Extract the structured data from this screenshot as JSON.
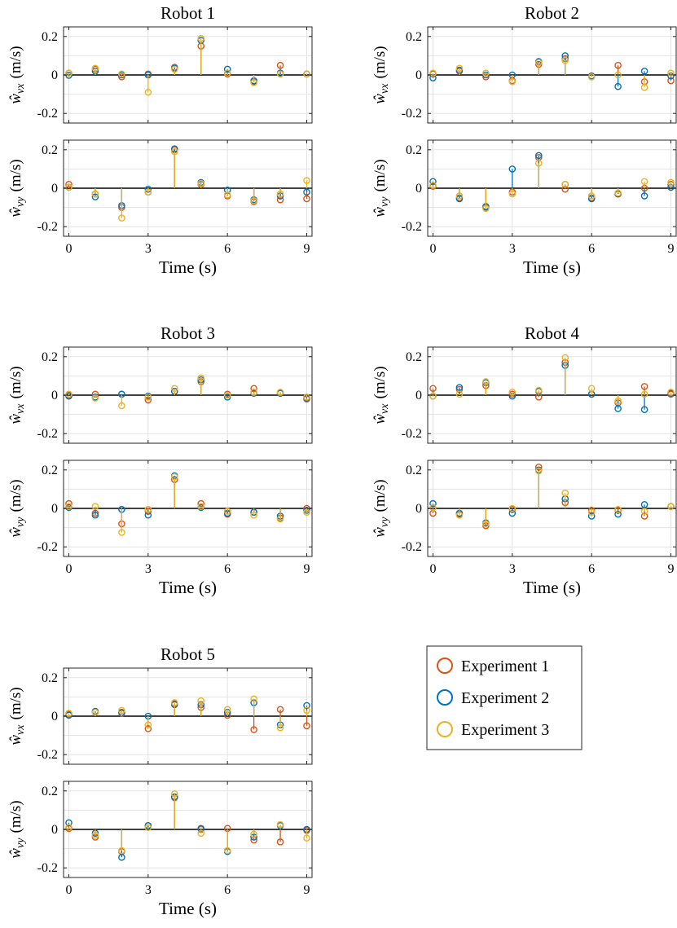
{
  "figure": {
    "legend": {
      "placement": "right-column",
      "entries": [
        "Experiment 1",
        "Experiment 2",
        "Experiment 3"
      ]
    },
    "colors": {
      "Experiment 1": "#d95319",
      "Experiment 2": "#0072bd",
      "Experiment 3": "#edb120"
    }
  },
  "chart_data": [
    {
      "type": "stem",
      "title": "Robot 1",
      "xlabel": "Time (s)",
      "ylabels": {
        "vx": "(m/s)",
        "vy": "(m/s)"
      },
      "ylabel_symbols": {
        "vx": "ŵ_vx",
        "vy": "ŵ_vy"
      },
      "x": [
        0,
        1,
        2,
        3,
        4,
        5,
        6,
        7,
        8,
        9
      ],
      "xticks": [
        "0",
        "3",
        "6",
        "9"
      ],
      "xlim": [
        -0.2,
        9.2
      ],
      "ylim": [
        -0.25,
        0.25
      ],
      "yticks": [
        "0.2",
        "0",
        "-0.2"
      ],
      "grid": true,
      "vx": [
        {
          "name": "Experiment 1",
          "values": [
            0.01,
            0.03,
            -0.01,
            0.005,
            0.04,
            0.15,
            0.005,
            -0.035,
            0.05,
            0.005
          ]
        },
        {
          "name": "Experiment 2",
          "values": [
            -0.002,
            0.02,
            0.0,
            0.0,
            0.035,
            0.18,
            0.03,
            -0.03,
            0.01,
            0.005
          ]
        },
        {
          "name": "Experiment 3",
          "values": [
            0.01,
            0.035,
            0.005,
            -0.09,
            0.03,
            0.19,
            0.01,
            -0.04,
            0.005,
            0.005
          ]
        }
      ],
      "vy": [
        {
          "name": "Experiment 1",
          "values": [
            0.02,
            -0.03,
            -0.1,
            -0.02,
            0.2,
            0.02,
            -0.04,
            -0.07,
            -0.06,
            -0.055
          ]
        },
        {
          "name": "Experiment 2",
          "values": [
            0.005,
            -0.045,
            -0.09,
            -0.005,
            0.205,
            0.03,
            -0.01,
            -0.06,
            -0.04,
            -0.02
          ]
        },
        {
          "name": "Experiment 3",
          "values": [
            0.005,
            -0.03,
            -0.155,
            -0.02,
            0.19,
            0.025,
            -0.035,
            -0.065,
            -0.03,
            0.04
          ]
        }
      ]
    },
    {
      "type": "stem",
      "title": "Robot 2",
      "xlabel": "Time (s)",
      "ylabels": {
        "vx": "(m/s)",
        "vy": "(m/s)"
      },
      "ylabel_symbols": {
        "vx": "ŵ_vx",
        "vy": "ŵ_vy"
      },
      "x": [
        0,
        1,
        2,
        3,
        4,
        5,
        6,
        7,
        8,
        9
      ],
      "xticks": [
        "0",
        "3",
        "6",
        "9"
      ],
      "xlim": [
        -0.2,
        9.2
      ],
      "ylim": [
        -0.25,
        0.25
      ],
      "yticks": [
        "0.2",
        "0",
        "-0.2"
      ],
      "grid": true,
      "vx": [
        {
          "name": "Experiment 1",
          "values": [
            0.005,
            0.02,
            -0.01,
            -0.03,
            0.055,
            0.085,
            -0.01,
            0.05,
            -0.035,
            -0.03
          ]
        },
        {
          "name": "Experiment 2",
          "values": [
            -0.015,
            0.025,
            0.0,
            0.0,
            0.07,
            0.1,
            -0.005,
            -0.06,
            0.02,
            -0.005
          ]
        },
        {
          "name": "Experiment 3",
          "values": [
            0.01,
            0.035,
            0.01,
            -0.035,
            0.065,
            0.075,
            -0.01,
            0.0,
            -0.065,
            0.01
          ]
        }
      ],
      "vy": [
        {
          "name": "Experiment 1",
          "values": [
            0.01,
            -0.05,
            -0.1,
            -0.02,
            0.16,
            -0.005,
            -0.05,
            -0.03,
            0.0,
            0.02
          ]
        },
        {
          "name": "Experiment 2",
          "values": [
            0.035,
            -0.055,
            -0.095,
            0.1,
            0.17,
            0.02,
            -0.055,
            -0.03,
            -0.04,
            0.005
          ]
        },
        {
          "name": "Experiment 3",
          "values": [
            0.015,
            -0.04,
            -0.105,
            -0.03,
            0.13,
            0.02,
            -0.04,
            -0.025,
            0.035,
            0.03
          ]
        }
      ]
    },
    {
      "type": "stem",
      "title": "Robot 3",
      "xlabel": "Time (s)",
      "ylabels": {
        "vx": "(m/s)",
        "vy": "(m/s)"
      },
      "ylabel_symbols": {
        "vx": "ŵ_vx",
        "vy": "ŵ_vy"
      },
      "x": [
        0,
        1,
        2,
        3,
        4,
        5,
        6,
        7,
        8,
        9
      ],
      "xticks": [
        "0",
        "3",
        "6",
        "9"
      ],
      "xlim": [
        -0.2,
        9.2
      ],
      "ylim": [
        -0.25,
        0.25
      ],
      "yticks": [
        "0.2",
        "0",
        "-0.2"
      ],
      "grid": true,
      "vx": [
        {
          "name": "Experiment 1",
          "values": [
            0.0,
            0.005,
            0.005,
            -0.025,
            0.02,
            0.07,
            0.005,
            0.035,
            0.01,
            -0.02
          ]
        },
        {
          "name": "Experiment 2",
          "values": [
            -0.005,
            -0.01,
            0.005,
            -0.005,
            0.02,
            0.08,
            -0.01,
            0.01,
            0.01,
            -0.015
          ]
        },
        {
          "name": "Experiment 3",
          "values": [
            0.005,
            -0.015,
            -0.055,
            -0.01,
            0.035,
            0.09,
            0.0,
            0.015,
            0.015,
            -0.01
          ]
        }
      ],
      "vy": [
        {
          "name": "Experiment 1",
          "values": [
            0.025,
            -0.025,
            -0.08,
            -0.015,
            0.15,
            0.025,
            -0.03,
            -0.02,
            -0.05,
            0.0
          ]
        },
        {
          "name": "Experiment 2",
          "values": [
            0.005,
            -0.035,
            -0.005,
            -0.035,
            0.17,
            0.005,
            -0.025,
            -0.02,
            -0.04,
            -0.01
          ]
        },
        {
          "name": "Experiment 3",
          "values": [
            0.01,
            0.01,
            -0.125,
            -0.005,
            0.165,
            0.01,
            -0.015,
            -0.035,
            -0.055,
            -0.02
          ]
        }
      ]
    },
    {
      "type": "stem",
      "title": "Robot 4",
      "xlabel": "Time (s)",
      "ylabels": {
        "vx": "(m/s)",
        "vy": "(m/s)"
      },
      "ylabel_symbols": {
        "vx": "ŵ_vx",
        "vy": "ŵ_vy"
      },
      "x": [
        0,
        1,
        2,
        3,
        4,
        5,
        6,
        7,
        8,
        9
      ],
      "xticks": [
        "0",
        "3",
        "6",
        "9"
      ],
      "xlim": [
        -0.2,
        9.2
      ],
      "ylim": [
        -0.25,
        0.25
      ],
      "yticks": [
        "0.2",
        "0",
        "-0.2"
      ],
      "grid": true,
      "vx": [
        {
          "name": "Experiment 1",
          "values": [
            0.035,
            0.03,
            0.05,
            0.005,
            -0.01,
            0.17,
            0.005,
            -0.04,
            0.045,
            0.005
          ]
        },
        {
          "name": "Experiment 2",
          "values": [
            -0.005,
            0.04,
            0.065,
            -0.005,
            0.02,
            0.155,
            0.005,
            -0.07,
            -0.075,
            0.01
          ]
        },
        {
          "name": "Experiment 3",
          "values": [
            -0.005,
            0.005,
            0.07,
            0.015,
            0.025,
            0.195,
            0.035,
            -0.03,
            0.005,
            0.015
          ]
        }
      ],
      "vy": [
        {
          "name": "Experiment 1",
          "values": [
            -0.025,
            -0.03,
            -0.09,
            -0.005,
            0.215,
            0.03,
            -0.01,
            -0.01,
            -0.04,
            0.01
          ]
        },
        {
          "name": "Experiment 2",
          "values": [
            0.025,
            -0.025,
            -0.075,
            -0.025,
            0.2,
            0.05,
            -0.04,
            -0.03,
            0.02,
            0.01
          ]
        },
        {
          "name": "Experiment 3",
          "values": [
            0.005,
            -0.035,
            -0.08,
            0.0,
            0.195,
            0.08,
            -0.02,
            -0.005,
            -0.015,
            0.01
          ]
        }
      ]
    },
    {
      "type": "stem",
      "title": "Robot 5",
      "xlabel": "Time (s)",
      "ylabels": {
        "vx": "(m/s)",
        "vy": "(m/s)"
      },
      "ylabel_symbols": {
        "vx": "ŵ_vx",
        "vy": "ŵ_vy"
      },
      "x": [
        0,
        1,
        2,
        3,
        4,
        5,
        6,
        7,
        8,
        9
      ],
      "xticks": [
        "0",
        "3",
        "6",
        "9"
      ],
      "xlim": [
        -0.2,
        9.2
      ],
      "ylim": [
        -0.25,
        0.25
      ],
      "yticks": [
        "0.2",
        "0",
        "-0.2"
      ],
      "grid": true,
      "vx": [
        {
          "name": "Experiment 1",
          "values": [
            0.01,
            0.02,
            0.015,
            -0.065,
            0.065,
            0.045,
            0.005,
            -0.07,
            0.035,
            -0.05
          ]
        },
        {
          "name": "Experiment 2",
          "values": [
            0.005,
            0.025,
            0.02,
            0.0,
            0.06,
            0.06,
            0.02,
            0.07,
            -0.045,
            0.055
          ]
        },
        {
          "name": "Experiment 3",
          "values": [
            0.015,
            0.02,
            0.03,
            -0.045,
            0.07,
            0.08,
            0.035,
            0.09,
            -0.06,
            0.03
          ]
        }
      ],
      "vy": [
        {
          "name": "Experiment 1",
          "values": [
            0.005,
            -0.04,
            -0.115,
            0.02,
            0.165,
            0.0,
            0.005,
            -0.055,
            -0.065,
            -0.005
          ]
        },
        {
          "name": "Experiment 2",
          "values": [
            0.035,
            -0.02,
            -0.145,
            0.02,
            0.17,
            0.005,
            -0.115,
            -0.04,
            0.02,
            0.0
          ]
        },
        {
          "name": "Experiment 3",
          "values": [
            0.01,
            -0.03,
            -0.11,
            0.01,
            0.185,
            -0.02,
            -0.11,
            -0.025,
            0.025,
            -0.045
          ]
        }
      ]
    }
  ]
}
